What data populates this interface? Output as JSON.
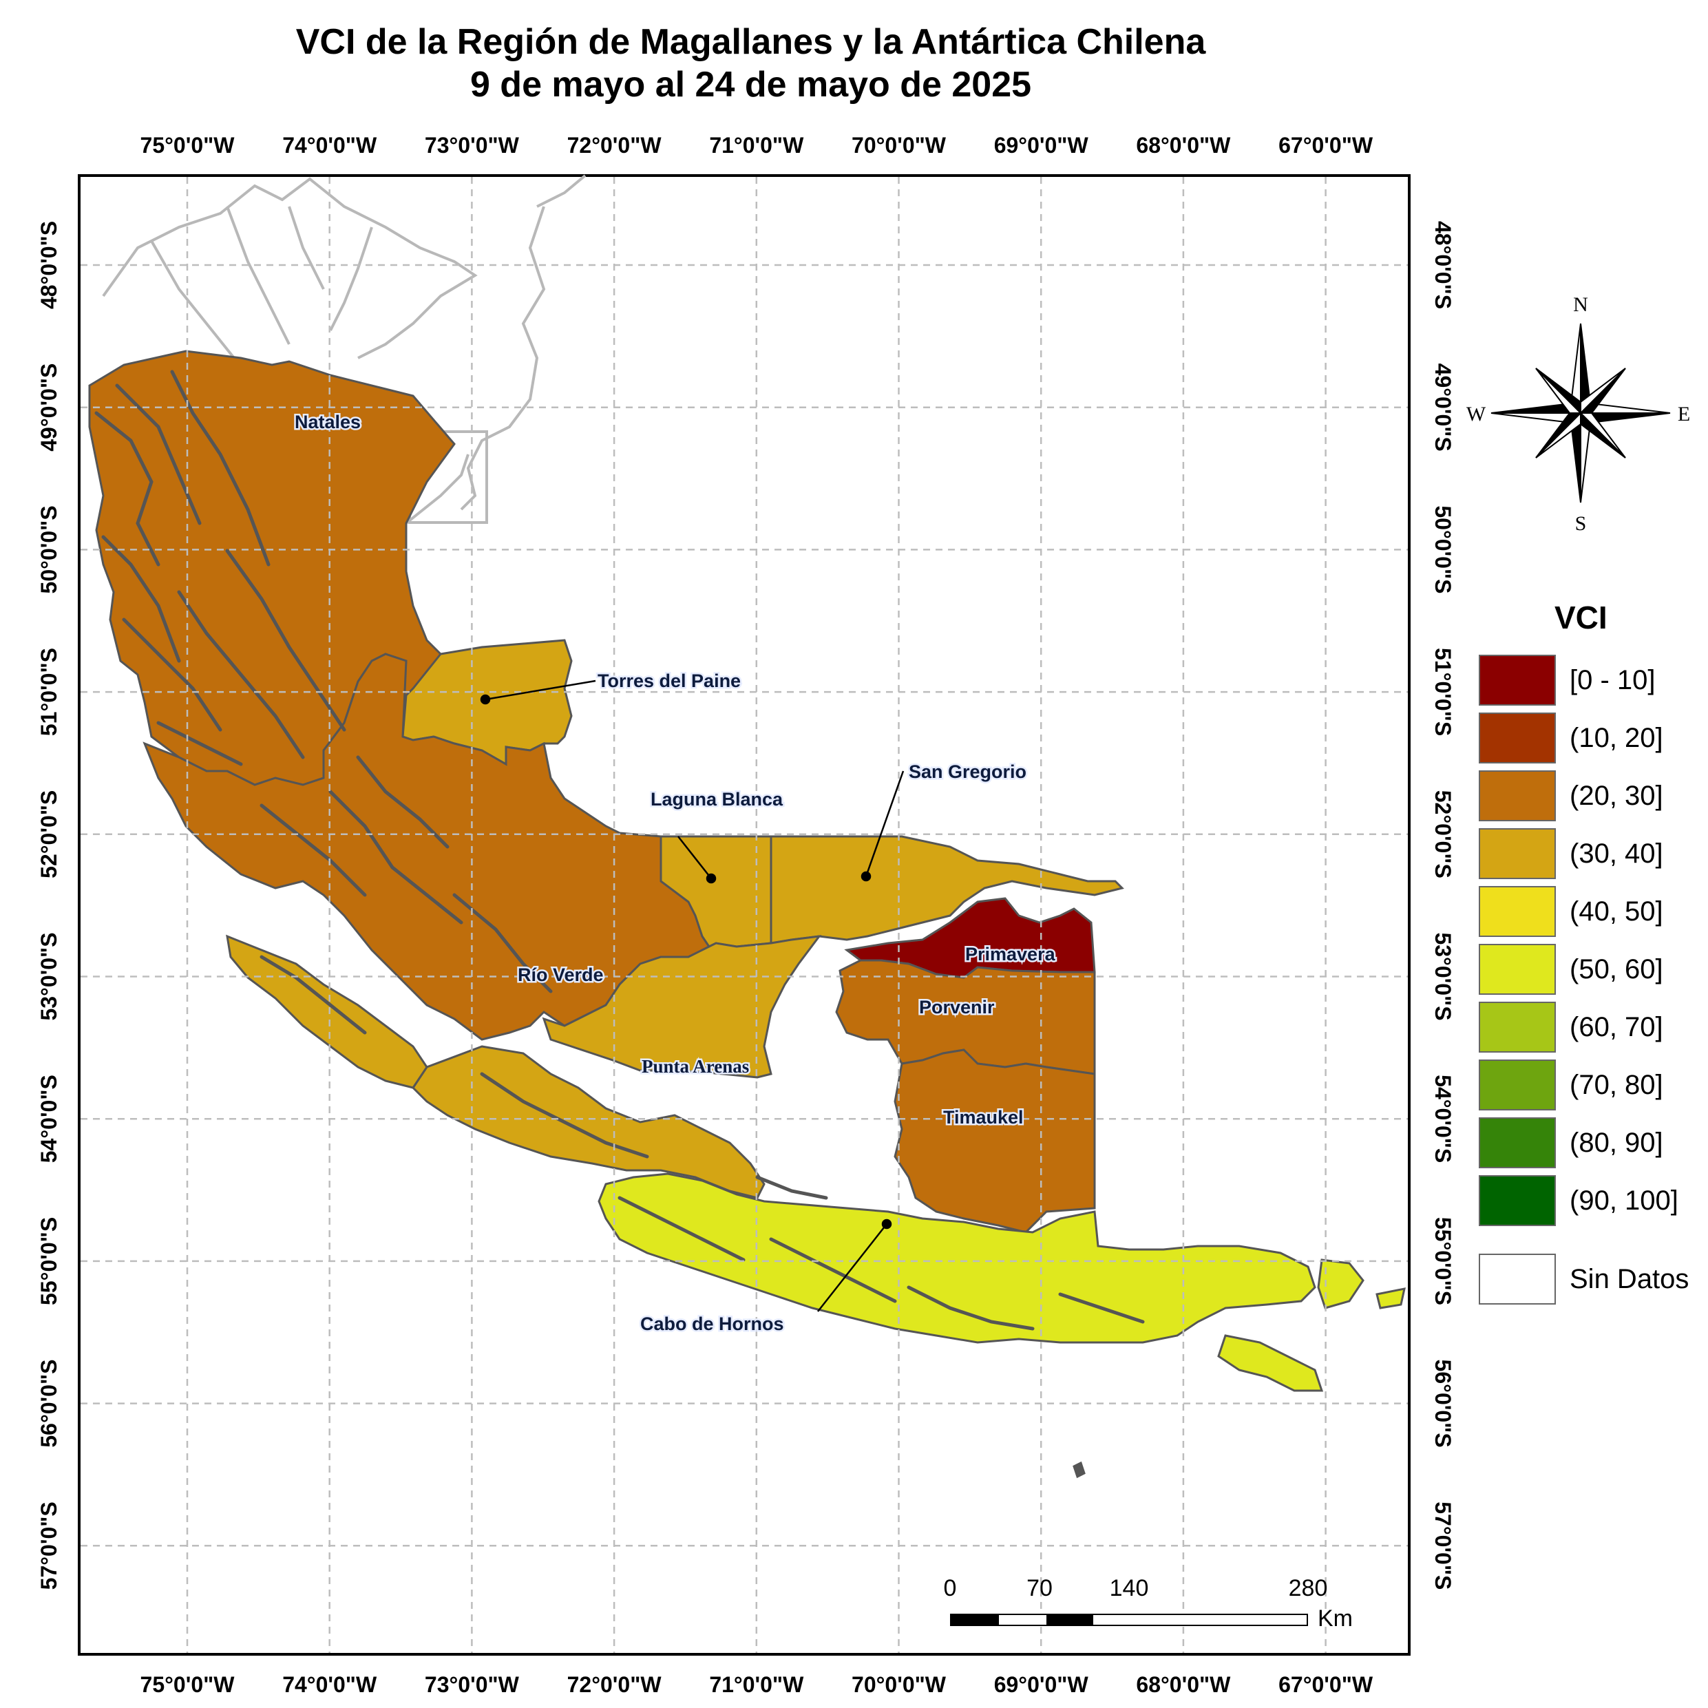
{
  "title": {
    "line1": "VCI de la Región de Magallanes y la Antártica Chilena",
    "line2": "9 de mayo al 24 de mayo de 2025"
  },
  "graticule": {
    "longitudes": [
      "75°0'0\"W",
      "74°0'0\"W",
      "73°0'0\"W",
      "72°0'0\"W",
      "71°0'0\"W",
      "70°0'0\"W",
      "69°0'0\"W",
      "68°0'0\"W",
      "67°0'0\"W"
    ],
    "latitudes": [
      "48°0'0\"S",
      "49°0'0\"S",
      "50°0'0\"S",
      "51°0'0\"S",
      "52°0'0\"S",
      "53°0'0\"S",
      "54°0'0\"S",
      "55°0'0\"S",
      "56°0'0\"S",
      "57°0'0\"S"
    ]
  },
  "places": {
    "natales": "Natales",
    "torres": "Torres del Paine",
    "laguna": "Laguna Blanca",
    "gregorio": "San Gregorio",
    "primavera": "Primavera",
    "rioverde": "Río Verde",
    "porvenir": "Porvenir",
    "puntaarenas": "Punta Arenas",
    "timaukel": "Timaukel",
    "cabohornos": "Cabo de Hornos"
  },
  "compass": {
    "n": "N",
    "s": "S",
    "e": "E",
    "w": "W"
  },
  "legend": {
    "title": "VCI",
    "classes": [
      {
        "label": "[0 - 10]",
        "color": "#8b0000"
      },
      {
        "label": "(10, 20]",
        "color": "#a33300"
      },
      {
        "label": "(20, 30]",
        "color": "#bf6e0c"
      },
      {
        "label": "(30, 40]",
        "color": "#d4a514"
      },
      {
        "label": "(40, 50]",
        "color": "#efdf1c"
      },
      {
        "label": "(50, 60]",
        "color": "#dfe81e"
      },
      {
        "label": "(60, 70]",
        "color": "#a7c617"
      },
      {
        "label": "(70, 80]",
        "color": "#6ea50f"
      },
      {
        "label": "(80, 90]",
        "color": "#358409"
      },
      {
        "label": "(90, 100]",
        "color": "#006400"
      }
    ],
    "nodata": {
      "label": "Sin Datos",
      "color": "#ffffff"
    }
  },
  "scale": {
    "ticks": [
      "0",
      "70",
      "140",
      "280"
    ],
    "unit": "Km"
  },
  "comuna_vci": {
    "Natales": "(20, 30]",
    "Torres del Paine": "(30, 40]",
    "Laguna Blanca": "(30, 40]",
    "San Gregorio": "(30, 40]",
    "Primavera": "[0 - 10]",
    "Río Verde": "(20, 30]",
    "Porvenir": "(20, 30]",
    "Punta Arenas": "(30, 40]",
    "Timaukel": "(20, 30]",
    "Cabo de Hornos": "(50, 60]"
  }
}
